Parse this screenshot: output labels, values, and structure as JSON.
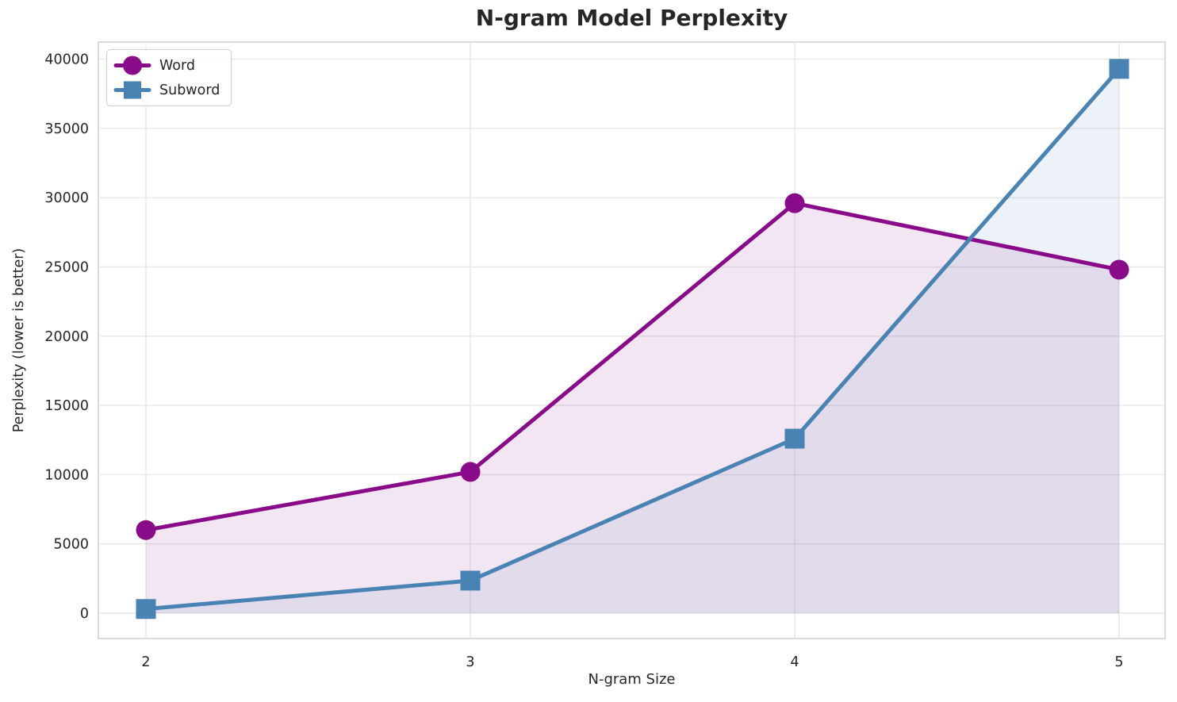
{
  "chart_data": {
    "type": "line",
    "title": "N-gram Model Perplexity",
    "xlabel": "N-gram Size",
    "ylabel": "Perplexity (lower is better)",
    "x": [
      2,
      3,
      4,
      5
    ],
    "x_tick_labels": [
      "2",
      "3",
      "4",
      "5"
    ],
    "y_ticks": [
      0,
      5000,
      10000,
      15000,
      20000,
      25000,
      30000,
      35000,
      40000
    ],
    "y_tick_labels": [
      "0",
      "5000",
      "10000",
      "15000",
      "20000",
      "25000",
      "30000",
      "35000",
      "40000"
    ],
    "xlim": [
      2,
      5
    ],
    "ylim": [
      0,
      40000
    ],
    "grid": true,
    "legend_position": "upper left",
    "fill_to_zero": true,
    "fill_alpha": 0.1,
    "series": [
      {
        "name": "Word",
        "marker": "circle",
        "color": "#8A0B8A",
        "values": [
          6000,
          10200,
          29600,
          24800
        ]
      },
      {
        "name": "Subword",
        "marker": "square",
        "color": "#4883B4",
        "values": [
          300,
          2350,
          12600,
          39300
        ]
      }
    ],
    "style": {
      "grid_color": "#e7e7e7",
      "spine_color": "#d2d2d2",
      "text_color": "#262626",
      "background": "#ffffff"
    }
  }
}
